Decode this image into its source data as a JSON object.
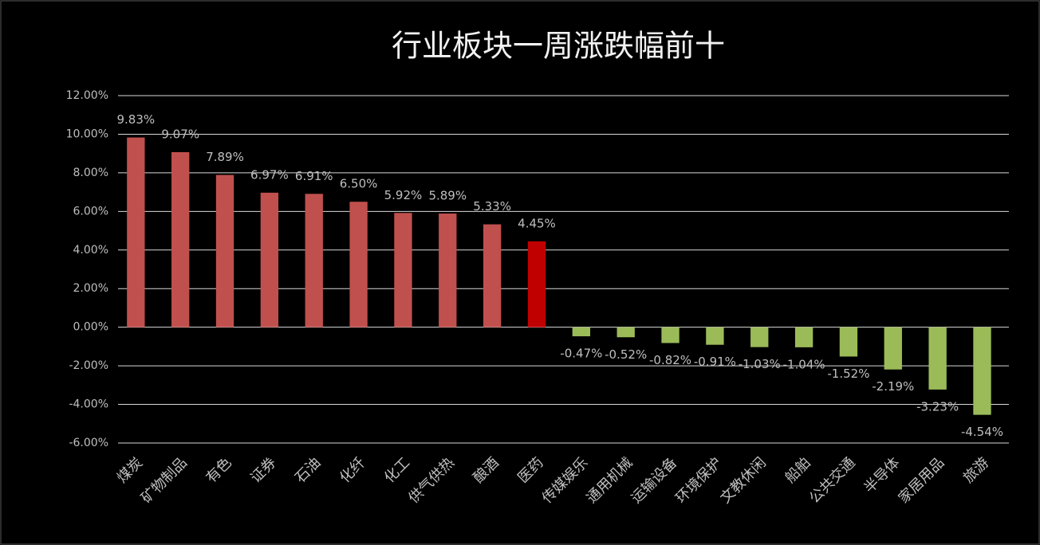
{
  "chart_data": {
    "type": "bar",
    "title": "行业板块一周涨跌幅前十",
    "categories": [
      "煤炭",
      "矿物制品",
      "有色",
      "证券",
      "石油",
      "化纤",
      "化工",
      "供气供热",
      "酿酒",
      "医药",
      "传媒娱乐",
      "通用机械",
      "运输设备",
      "环境保护",
      "文教休闲",
      "船舶",
      "公共交通",
      "半导体",
      "家居用品",
      "旅游"
    ],
    "values": [
      9.83,
      9.07,
      7.89,
      6.97,
      6.91,
      6.5,
      5.92,
      5.89,
      5.33,
      4.45,
      -0.47,
      -0.52,
      -0.82,
      -0.91,
      -1.03,
      -1.04,
      -1.52,
      -2.19,
      -3.23,
      -4.54
    ],
    "value_labels": [
      "9.83%",
      "9.07%",
      "7.89%",
      "6.97%",
      "6.91%",
      "6.50%",
      "5.92%",
      "5.89%",
      "5.33%",
      "4.45%",
      "-0.47%",
      "-0.52%",
      "-0.82%",
      "-0.91%",
      "-1.03%",
      "-1.04%",
      "-1.52%",
      "-2.19%",
      "-3.23%",
      "-4.54%"
    ],
    "colors": [
      "#c0504d",
      "#c0504d",
      "#c0504d",
      "#c0504d",
      "#c0504d",
      "#c0504d",
      "#c0504d",
      "#c0504d",
      "#c0504d",
      "#c00000",
      "#9bbb59",
      "#9bbb59",
      "#9bbb59",
      "#9bbb59",
      "#9bbb59",
      "#9bbb59",
      "#9bbb59",
      "#9bbb59",
      "#9bbb59",
      "#9bbb59"
    ],
    "ylim": [
      -6,
      12
    ],
    "yticks": [
      {
        "value": -6,
        "label": "-6.00%"
      },
      {
        "value": -4,
        "label": "-4.00%"
      },
      {
        "value": -2,
        "label": "-2.00%"
      },
      {
        "value": 0,
        "label": "0.00%"
      },
      {
        "value": 2,
        "label": "2.00%"
      },
      {
        "value": 4,
        "label": "4.00%"
      },
      {
        "value": 6,
        "label": "6.00%"
      },
      {
        "value": 8,
        "label": "8.00%"
      },
      {
        "value": 10,
        "label": "10.00%"
      },
      {
        "value": 12,
        "label": "12.00%"
      }
    ],
    "grid": true
  }
}
